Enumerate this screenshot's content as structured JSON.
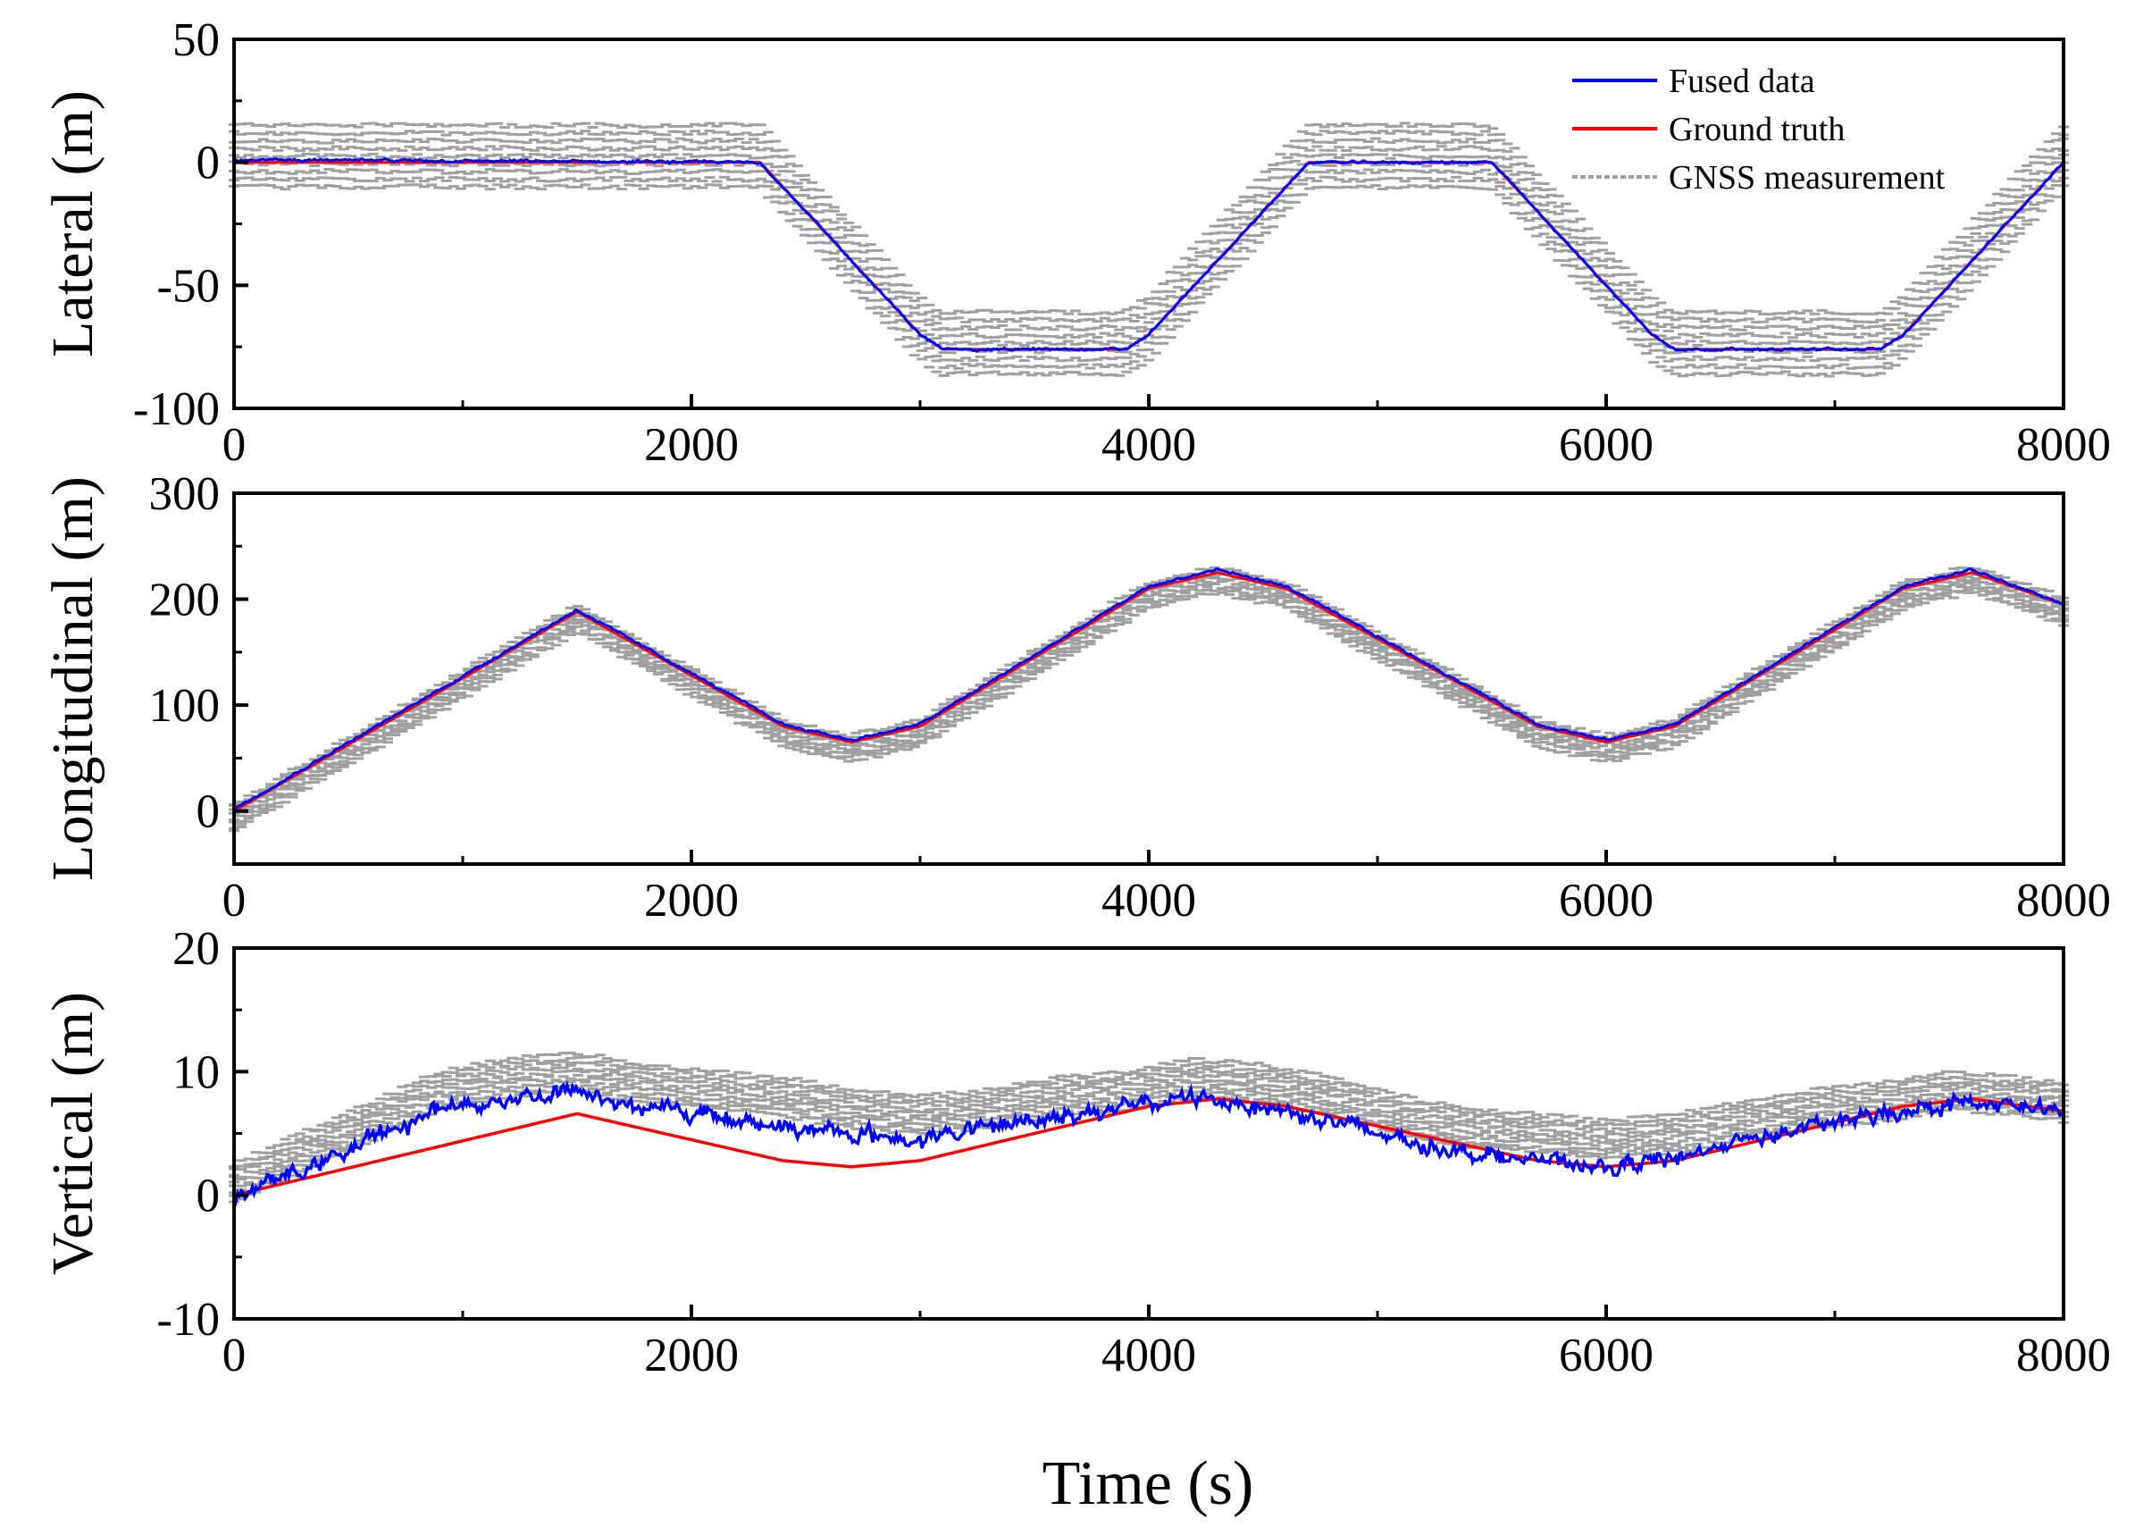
{
  "xlabel": "Time (s)",
  "legend": [
    {
      "label": "Fused data",
      "color": "#0000ff"
    },
    {
      "label": "Ground truth",
      "color": "#ff0000"
    },
    {
      "label": "GNSS measurement",
      "color": "#a0a0a0"
    }
  ],
  "colors": {
    "fused": "#0000ff",
    "truth": "#ff0000",
    "gnss": "#a0a0a0",
    "axis": "#000000"
  },
  "chart_data": [
    {
      "type": "line",
      "id": "lateral",
      "ylabel": "Lateral (m)",
      "xlim": [
        0,
        8000
      ],
      "ylim": [
        -100,
        50
      ],
      "xticks": [
        0,
        2000,
        4000,
        6000,
        8000
      ],
      "xtick_labels": [
        "0",
        "2000",
        "4000",
        "6000",
        "8000"
      ],
      "yticks": [
        -100,
        -50,
        0,
        50
      ],
      "ytick_labels": [
        "-100",
        "-50",
        "0",
        "50"
      ],
      "legend_position": "top-right",
      "series": [
        {
          "name": "Ground truth",
          "x": [
            0,
            2300,
            3000,
            3100,
            3900,
            4000,
            4700,
            5500,
            6200,
            6300,
            7200,
            7300,
            8000
          ],
          "y": [
            0,
            0,
            -70,
            -76,
            -76,
            -70,
            0,
            0,
            -70,
            -76,
            -76,
            -70,
            0
          ]
        },
        {
          "name": "Fused data",
          "x": [
            0,
            2300,
            3000,
            3100,
            3900,
            4000,
            4700,
            5500,
            6200,
            6300,
            7200,
            7300,
            8000
          ],
          "y": [
            1,
            0,
            -70,
            -76,
            -76,
            -70,
            0,
            0,
            -70,
            -76,
            -76,
            -70,
            0
          ]
        },
        {
          "name": "GNSS measurement",
          "x": [
            0,
            2300,
            3000,
            3100,
            3900,
            4000,
            4700,
            5500,
            6200,
            6300,
            7200,
            7300,
            8000
          ],
          "y": [
            0,
            0,
            -70,
            -76,
            -76,
            -70,
            0,
            0,
            -70,
            -76,
            -76,
            -70,
            0
          ],
          "spread": [
            -10,
            15
          ]
        }
      ]
    },
    {
      "type": "line",
      "id": "longitudinal",
      "ylabel": "Longitudinal (m)",
      "xlim": [
        0,
        8000
      ],
      "ylim": [
        -50,
        300
      ],
      "xticks": [
        0,
        2000,
        4000,
        6000,
        8000
      ],
      "xtick_labels": [
        "0",
        "2000",
        "4000",
        "6000",
        "8000"
      ],
      "yticks": [
        0,
        100,
        200,
        300
      ],
      "ytick_labels": [
        "0",
        "100",
        "200",
        "300"
      ],
      "series": [
        {
          "name": "Ground truth",
          "x": [
            0,
            1500,
            2400,
            2700,
            3000,
            4000,
            4300,
            4600,
            5700,
            6000,
            6300,
            7300,
            7600,
            8000
          ],
          "y": [
            0,
            188,
            80,
            65,
            80,
            210,
            225,
            210,
            80,
            65,
            80,
            210,
            225,
            195
          ]
        },
        {
          "name": "Fused data",
          "x": [
            0,
            1500,
            2400,
            2700,
            3000,
            4000,
            4300,
            4600,
            5700,
            6000,
            6300,
            7300,
            7600,
            8000
          ],
          "y": [
            2,
            190,
            82,
            67,
            82,
            212,
            228,
            212,
            82,
            67,
            82,
            212,
            228,
            196
          ]
        },
        {
          "name": "GNSS measurement",
          "x": [
            0,
            1500,
            2400,
            2700,
            3000,
            4000,
            4300,
            4600,
            5700,
            6000,
            6300,
            7300,
            7600,
            8000
          ],
          "y": [
            0,
            188,
            80,
            65,
            80,
            210,
            225,
            210,
            80,
            65,
            80,
            210,
            225,
            195
          ],
          "spread": [
            -18,
            6
          ]
        }
      ]
    },
    {
      "type": "line",
      "id": "vertical",
      "ylabel": "Vertical (m)",
      "xlim": [
        0,
        8000
      ],
      "ylim": [
        -10,
        20
      ],
      "xticks": [
        0,
        2000,
        4000,
        6000,
        8000
      ],
      "xtick_labels": [
        "0",
        "2000",
        "4000",
        "6000",
        "8000"
      ],
      "yticks": [
        -10,
        0,
        10,
        20
      ],
      "ytick_labels": [
        "-10",
        "0",
        "10",
        "20"
      ],
      "series": [
        {
          "name": "Ground truth",
          "x": [
            0,
            1500,
            2400,
            2700,
            3000,
            4000,
            4300,
            4600,
            5700,
            6000,
            6300,
            7300,
            7600,
            8000
          ],
          "y": [
            0,
            6.6,
            2.8,
            2.3,
            2.8,
            7.2,
            7.8,
            7.2,
            2.8,
            2.3,
            2.8,
            7.2,
            7.8,
            6.8
          ]
        },
        {
          "name": "Fused data",
          "x": [
            0,
            300,
            600,
            900,
            1200,
            1500,
            1800,
            2100,
            2400,
            2700,
            3000,
            3300,
            3600,
            3900,
            4200,
            4500,
            4800,
            5100,
            5400,
            5700,
            6000,
            6300,
            6600,
            6900,
            7200,
            7500,
            7800,
            8000
          ],
          "y": [
            0,
            2,
            4.5,
            7,
            7.8,
            8.5,
            7,
            6.5,
            5.5,
            5,
            4.5,
            5.5,
            6.5,
            7,
            8,
            7.2,
            6,
            4.5,
            3.5,
            2.8,
            2.2,
            3,
            4.5,
            5.5,
            6.5,
            7.5,
            7.2,
            6.5
          ]
        },
        {
          "name": "GNSS measurement",
          "x": [
            0,
            300,
            600,
            900,
            1200,
            1500,
            1800,
            2100,
            2400,
            2700,
            3000,
            3300,
            3600,
            3900,
            4200,
            4500,
            4800,
            5100,
            5400,
            5700,
            6000,
            6300,
            6600,
            6900,
            7200,
            7500,
            7800,
            8000
          ],
          "y": [
            1,
            3.5,
            6,
            8.5,
            9.5,
            10,
            9,
            8.5,
            8,
            7,
            6.5,
            7,
            8,
            8.5,
            9.5,
            9,
            8,
            6.5,
            5.5,
            5,
            4.5,
            5,
            6,
            7,
            7.5,
            8.5,
            8,
            7.5
          ],
          "spread": [
            -1.5,
            1.5
          ]
        }
      ]
    }
  ]
}
